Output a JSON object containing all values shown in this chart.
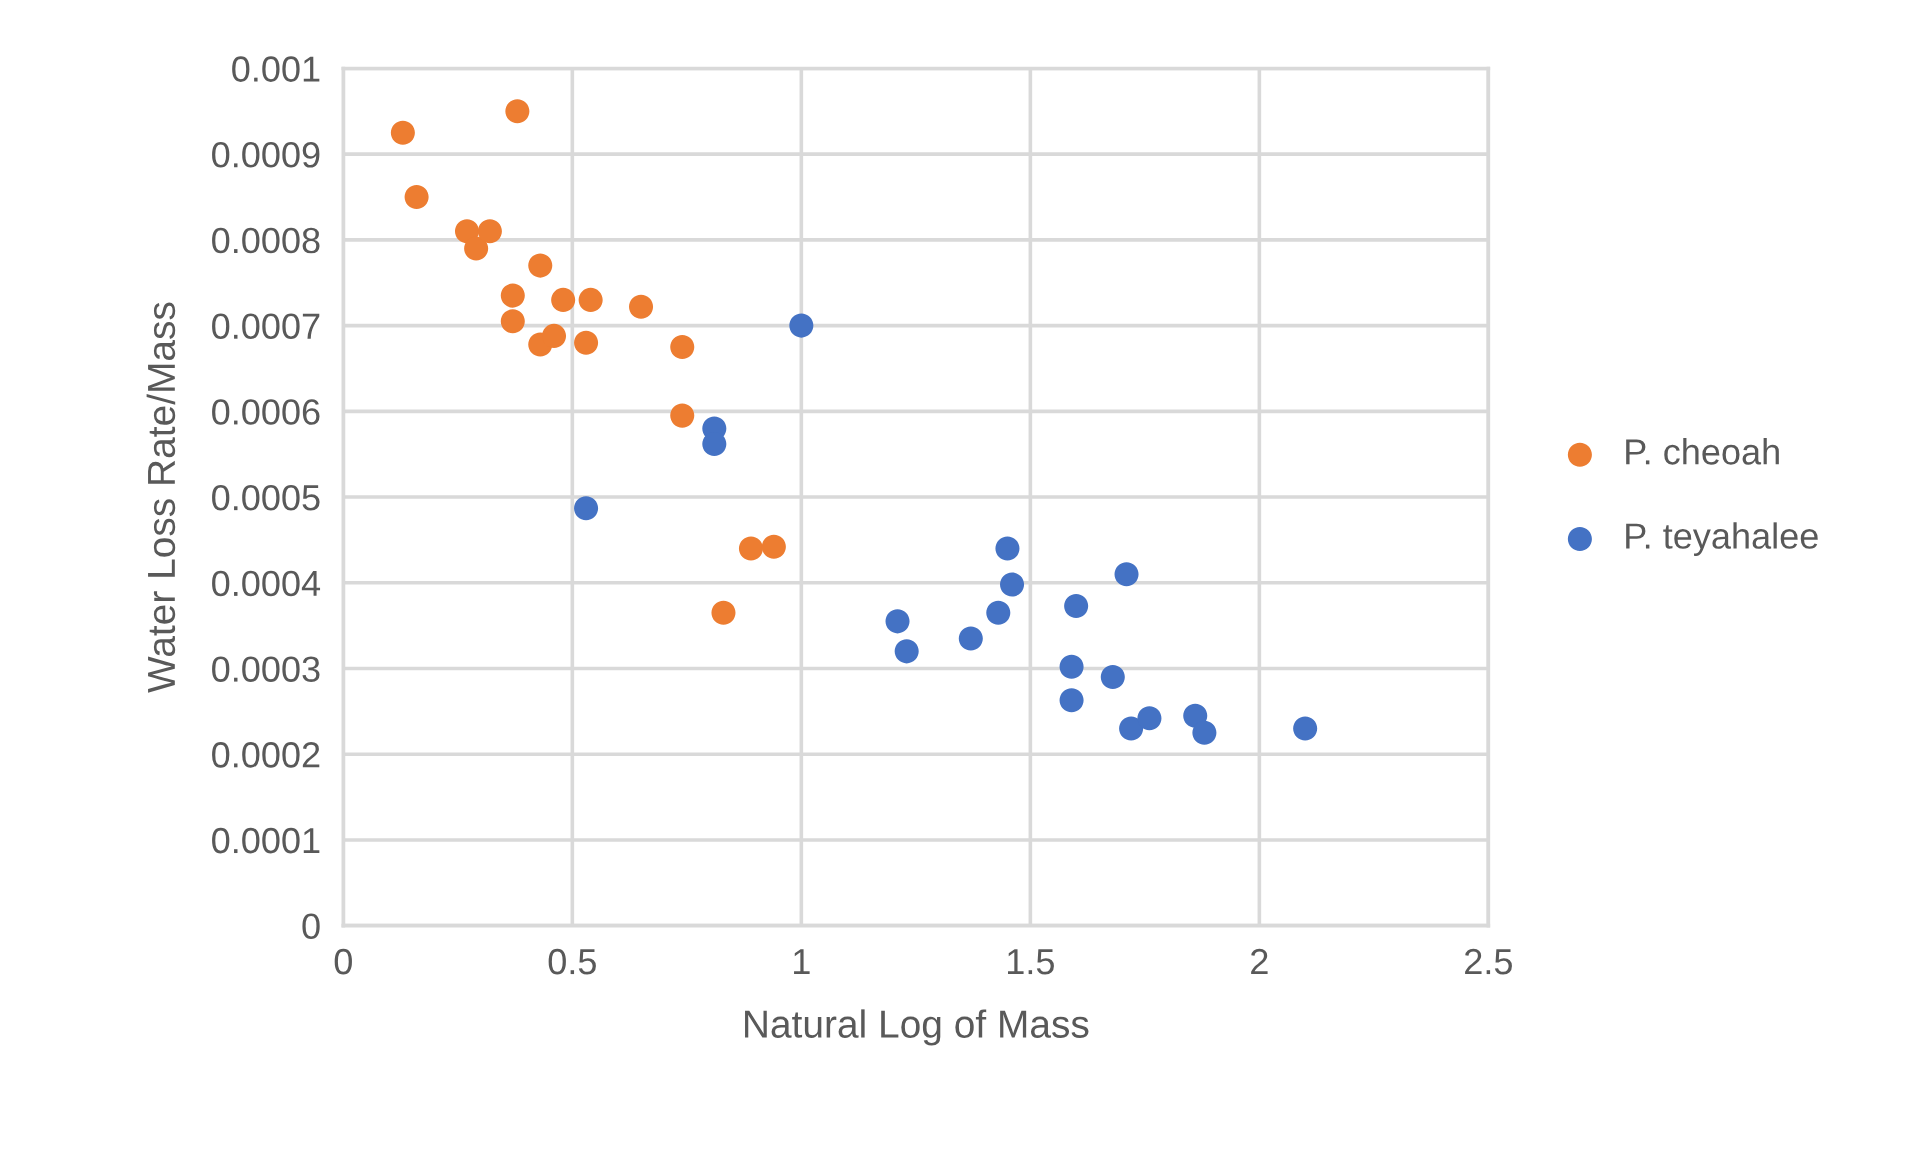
{
  "chart_data": {
    "type": "scatter",
    "xlabel": "Natural Log of Mass",
    "ylabel": "Water Loss Rate/Mass",
    "xlim": [
      0,
      2.5
    ],
    "xticks": [
      0,
      0.5,
      1,
      1.5,
      2,
      2.5
    ],
    "ylim": [
      0,
      0.001
    ],
    "yticks": [
      0,
      0.0001,
      0.0002,
      0.0003,
      0.0004,
      0.0005,
      0.0006,
      0.0007,
      0.0008,
      0.0009,
      0.001
    ],
    "grid": true,
    "legend": "right",
    "marker": "circle",
    "series": [
      {
        "name": "P. cheoah",
        "color": "#ed7d31",
        "x": [
          0.13,
          0.16,
          0.38,
          0.27,
          0.29,
          0.32,
          0.43,
          0.37,
          0.37,
          0.48,
          0.54,
          0.43,
          0.46,
          0.53,
          0.65,
          0.74,
          0.74,
          0.83,
          0.89,
          0.94
        ],
        "values": [
          0.000925,
          0.00085,
          0.00095,
          0.00081,
          0.00079,
          0.00081,
          0.00077,
          0.000735,
          0.000705,
          0.00073,
          0.00073,
          0.000678,
          0.000688,
          0.00068,
          0.000722,
          0.000675,
          0.000595,
          0.000365,
          0.00044,
          0.000442
        ]
      },
      {
        "name": "P. teyahalee",
        "color": "#4472c4",
        "x": [
          1.0,
          0.81,
          0.81,
          0.53,
          1.21,
          1.23,
          1.37,
          1.43,
          1.45,
          1.46,
          1.6,
          1.59,
          1.59,
          1.71,
          1.68,
          1.72,
          1.76,
          1.86,
          1.88,
          2.1
        ],
        "values": [
          0.0007,
          0.00058,
          0.000562,
          0.000487,
          0.000355,
          0.00032,
          0.000335,
          0.000365,
          0.00044,
          0.000398,
          0.000373,
          0.000302,
          0.000263,
          0.00041,
          0.00029,
          0.00023,
          0.000242,
          0.000245,
          0.000225,
          0.00023
        ]
      }
    ]
  }
}
